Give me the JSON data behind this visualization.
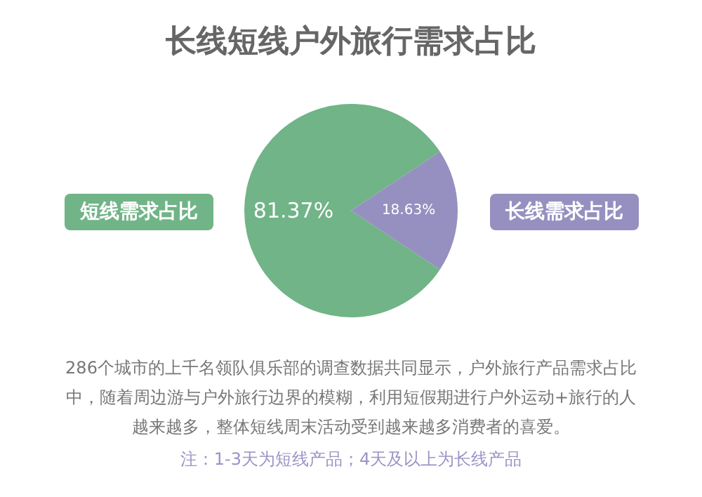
{
  "chart_data": {
    "type": "pie",
    "title": "长线短线户外旅行需求占比",
    "categories": [
      "短线需求占比",
      "长线需求占比"
    ],
    "values": [
      81.37,
      18.63
    ],
    "colors": [
      "#70b487",
      "#9690c0"
    ],
    "value_labels": [
      "81.37%",
      "18.63%"
    ],
    "annotations": [
      "286个城市的上千名领队俱乐部的调查数据共同显示，户外旅行产品需求占比中，随着周边游与户外旅行边界的模糊，利用短假期进行户外运动+旅行的人越来越多，整体短线周末活动受到越来越多消费者的喜爱。",
      "注：1-3天为短线产品；4天及以上为长线产品"
    ]
  }
}
